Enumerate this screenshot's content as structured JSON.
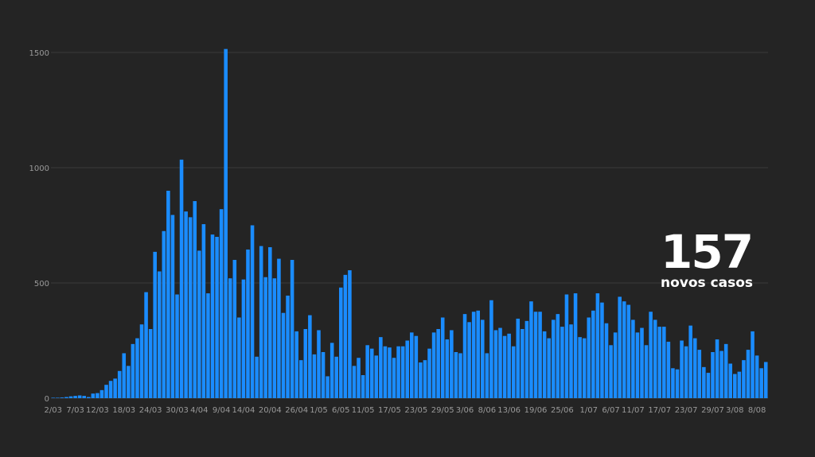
{
  "colors": {
    "background": "#242424",
    "bar": "#1a8cff",
    "grid": "#3a3a3a",
    "tick": "#9a9a9a",
    "callout": "#ffffff"
  },
  "callout": {
    "number": "157",
    "label": "novos casos"
  },
  "chart_data": {
    "type": "bar",
    "title": "",
    "xlabel": "",
    "ylabel": "",
    "ylim": [
      0,
      1500
    ],
    "yticks": [
      0,
      500,
      1000,
      1500
    ],
    "grid": true,
    "xtick_labels": [
      {
        "index": 0,
        "label": "2/03"
      },
      {
        "index": 5,
        "label": "7/03"
      },
      {
        "index": 10,
        "label": "12/03"
      },
      {
        "index": 16,
        "label": "18/03"
      },
      {
        "index": 22,
        "label": "24/03"
      },
      {
        "index": 28,
        "label": "30/03"
      },
      {
        "index": 33,
        "label": "4/04"
      },
      {
        "index": 38,
        "label": "9/04"
      },
      {
        "index": 43,
        "label": "14/04"
      },
      {
        "index": 49,
        "label": "20/04"
      },
      {
        "index": 55,
        "label": "26/04"
      },
      {
        "index": 60,
        "label": "1/05"
      },
      {
        "index": 65,
        "label": "6/05"
      },
      {
        "index": 70,
        "label": "11/05"
      },
      {
        "index": 76,
        "label": "17/05"
      },
      {
        "index": 82,
        "label": "23/05"
      },
      {
        "index": 88,
        "label": "29/05"
      },
      {
        "index": 93,
        "label": "3/06"
      },
      {
        "index": 98,
        "label": "8/06"
      },
      {
        "index": 103,
        "label": "13/06"
      },
      {
        "index": 109,
        "label": "19/06"
      },
      {
        "index": 115,
        "label": "25/06"
      },
      {
        "index": 121,
        "label": "1/07"
      },
      {
        "index": 126,
        "label": "6/07"
      },
      {
        "index": 131,
        "label": "11/07"
      },
      {
        "index": 137,
        "label": "17/07"
      },
      {
        "index": 143,
        "label": "23/07"
      },
      {
        "index": 149,
        "label": "29/07"
      },
      {
        "index": 154,
        "label": "3/08"
      },
      {
        "index": 159,
        "label": "8/08"
      }
    ],
    "values": [
      2,
      2,
      3,
      5,
      8,
      10,
      12,
      10,
      5,
      20,
      22,
      35,
      58,
      75,
      85,
      118,
      195,
      140,
      235,
      260,
      320,
      460,
      300,
      635,
      550,
      725,
      900,
      795,
      450,
      1035,
      810,
      785,
      855,
      640,
      755,
      455,
      710,
      700,
      820,
      1515,
      520,
      600,
      350,
      515,
      645,
      750,
      180,
      660,
      525,
      655,
      520,
      605,
      370,
      445,
      600,
      290,
      165,
      300,
      360,
      190,
      295,
      200,
      95,
      240,
      180,
      480,
      535,
      555,
      140,
      175,
      100,
      230,
      215,
      185,
      265,
      225,
      220,
      175,
      225,
      225,
      250,
      285,
      270,
      155,
      165,
      215,
      285,
      300,
      350,
      255,
      295,
      200,
      195,
      365,
      330,
      375,
      380,
      340,
      195,
      425,
      295,
      305,
      270,
      280,
      225,
      345,
      300,
      335,
      420,
      375,
      375,
      290,
      260,
      340,
      365,
      310,
      450,
      320,
      455,
      265,
      260,
      350,
      380,
      455,
      415,
      325,
      230,
      285,
      440,
      420,
      405,
      340,
      285,
      305,
      230,
      375,
      340,
      310,
      310,
      245,
      130,
      125,
      250,
      225,
      315,
      260,
      210,
      135,
      110,
      200,
      255,
      205,
      235,
      150,
      105,
      115,
      165,
      210,
      290,
      185,
      130,
      157
    ]
  }
}
